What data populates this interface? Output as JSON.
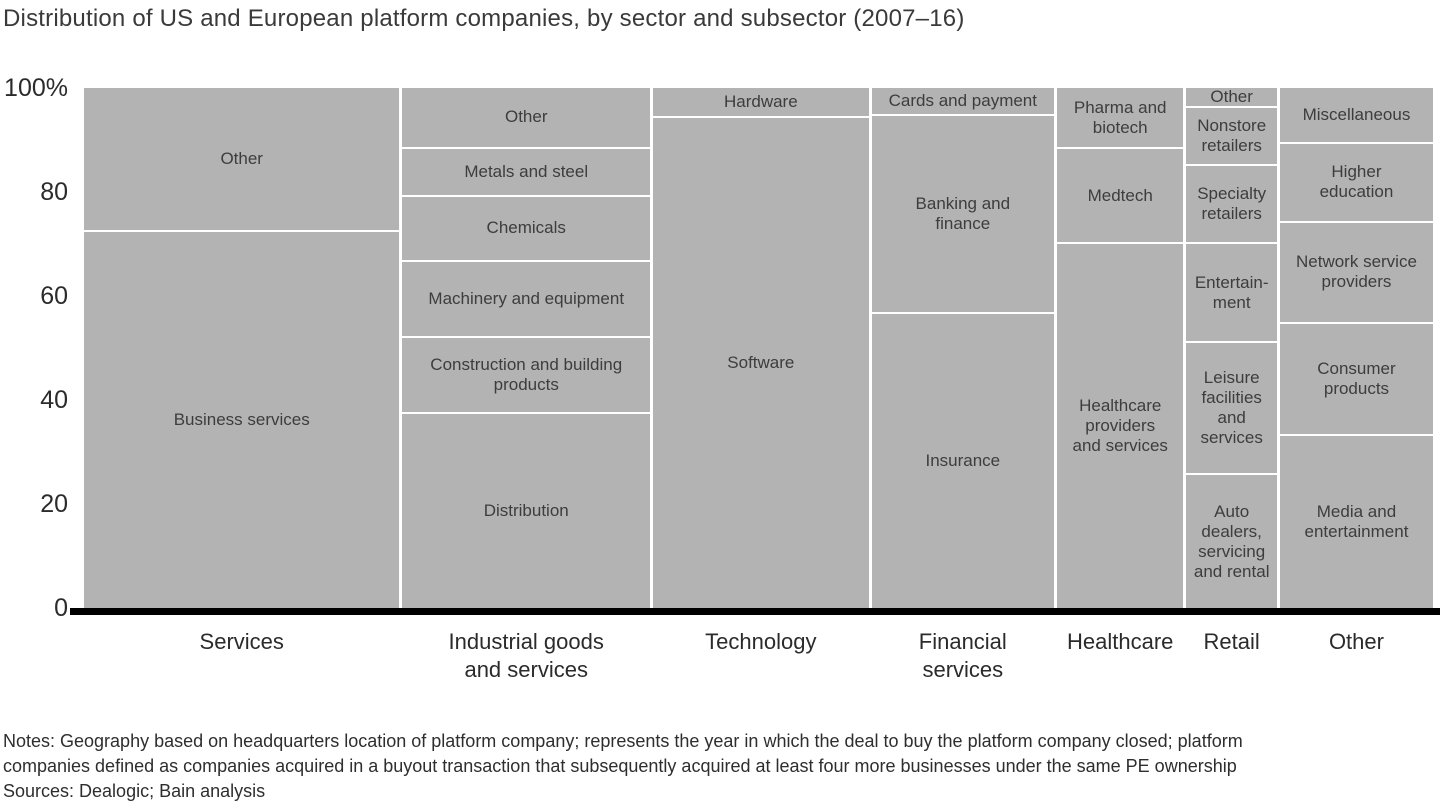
{
  "title": "Distribution of US and European platform companies, by sector and subsector (2007–16)",
  "colors": {
    "segment_fill": "#b3b3b3",
    "separator": "#ffffff",
    "axis_line": "#000000",
    "text": "#2b2b2b",
    "segment_text": "#3d3d3d"
  },
  "y_axis": {
    "ticks": [
      {
        "label": "100%",
        "value": 100
      },
      {
        "label": "80",
        "value": 80
      },
      {
        "label": "60",
        "value": 60
      },
      {
        "label": "40",
        "value": 40
      },
      {
        "label": "20",
        "value": 20
      },
      {
        "label": "0",
        "value": 0
      }
    ]
  },
  "chart_data": {
    "type": "bar",
    "subtype": "marimekko-stacked-percent",
    "units": "percent",
    "ylim": [
      0,
      100
    ],
    "grid": false,
    "legend": "none",
    "columns": [
      {
        "label": "Services",
        "label_display": "Services",
        "width_pct": 23.7,
        "segments": [
          {
            "name": "Other",
            "value": 27.5,
            "display": "Other"
          },
          {
            "name": "Business services",
            "value": 72.5,
            "display": "Business services"
          }
        ]
      },
      {
        "label": "Industrial goods and services",
        "label_display": "Industrial goods\nand services",
        "width_pct": 18.6,
        "segments": [
          {
            "name": "Other",
            "value": 11.5,
            "display": "Other"
          },
          {
            "name": "Metals and steel",
            "value": 9,
            "display": "Metals and steel"
          },
          {
            "name": "Chemicals",
            "value": 12.5,
            "display": "Chemicals"
          },
          {
            "name": "Machinery and equipment",
            "value": 14.5,
            "display": "Machinery and equipment"
          },
          {
            "name": "Construction and building products",
            "value": 14.5,
            "display": "Construction and building\nproducts"
          },
          {
            "name": "Distribution",
            "value": 38,
            "display": "Distribution"
          }
        ]
      },
      {
        "label": "Technology",
        "label_display": "Technology",
        "width_pct": 16.2,
        "segments": [
          {
            "name": "Hardware",
            "value": 5.5,
            "display": "Hardware"
          },
          {
            "name": "Software",
            "value": 94.5,
            "display": "Software"
          }
        ]
      },
      {
        "label": "Financial services",
        "label_display": "Financial\nservices",
        "width_pct": 13.7,
        "segments": [
          {
            "name": "Cards and payment",
            "value": 5,
            "display": "Cards and payment"
          },
          {
            "name": "Banking and finance",
            "value": 38,
            "display": "Banking and\nfinance"
          },
          {
            "name": "Insurance",
            "value": 57,
            "display": "Insurance"
          }
        ]
      },
      {
        "label": "Healthcare",
        "label_display": "Healthcare",
        "width_pct": 9.5,
        "segments": [
          {
            "name": "Pharma and biotech",
            "value": 11.5,
            "display": "Pharma and\nbiotech"
          },
          {
            "name": "Medtech",
            "value": 18,
            "display": "Medtech"
          },
          {
            "name": "Healthcare providers and services",
            "value": 70.5,
            "display": "Healthcare\nproviders\nand services"
          }
        ]
      },
      {
        "label": "Retail",
        "label_display": "Retail",
        "width_pct": 6.8,
        "segments": [
          {
            "name": "Other",
            "value": 3.5,
            "display": "Other"
          },
          {
            "name": "Nonstore retailers",
            "value": 11,
            "display": "Nonstore\nretailers"
          },
          {
            "name": "Specialty retailers",
            "value": 15,
            "display": "Specialty\nretailers"
          },
          {
            "name": "Entertainment",
            "value": 19,
            "display": "Entertain-\nment"
          },
          {
            "name": "Leisure facilities and services",
            "value": 25.5,
            "display": "Leisure\nfacilities\nand\nservices"
          },
          {
            "name": "Auto dealers, servicing and rental",
            "value": 26,
            "display": "Auto\ndealers,\nservicing\nand rental"
          }
        ]
      },
      {
        "label": "Other",
        "label_display": "Other",
        "width_pct": 11.5,
        "segments": [
          {
            "name": "Miscellaneous",
            "value": 10.5,
            "display": "Miscellaneous"
          },
          {
            "name": "Higher education",
            "value": 15,
            "display": "Higher\neducation"
          },
          {
            "name": "Network service providers",
            "value": 19.5,
            "display": "Network service\nproviders"
          },
          {
            "name": "Consumer products",
            "value": 21.5,
            "display": "Consumer\nproducts"
          },
          {
            "name": "Media and entertainment",
            "value": 33.5,
            "display": "Media and\nentertainment"
          }
        ]
      }
    ]
  },
  "notes": {
    "lines": [
      "Notes: Geography based on headquarters location of platform company; represents the year in which the deal to buy the platform company closed; platform",
      "companies defined as companies acquired in a buyout transaction that subsequently acquired at least four more businesses under the same PE ownership",
      "Sources: Dealogic; Bain analysis"
    ]
  }
}
